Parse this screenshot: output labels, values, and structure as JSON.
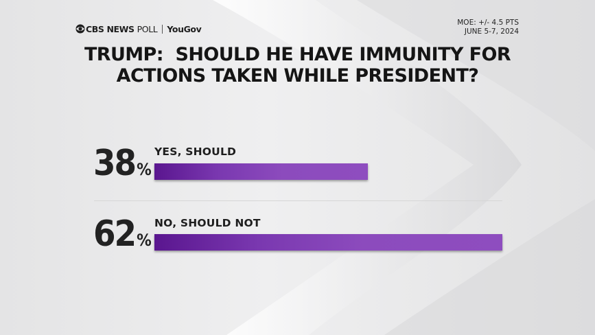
{
  "brand": {
    "network": "CBS NEWS",
    "poll": "POLL",
    "partner": "YouGov"
  },
  "meta": {
    "moe": "MOE: +/- 4.5 PTS",
    "dates": "JUNE 5-7, 2024"
  },
  "title_line1": "TRUMP:  SHOULD HE HAVE IMMUNITY FOR",
  "title_line2": "ACTIONS TAKEN WHILE PRESIDENT?",
  "percent_symbol": "%",
  "colors": {
    "bar": "#8e4dbf",
    "bar_dark": "#5a168f"
  },
  "chart_data": {
    "type": "bar",
    "orientation": "horizontal",
    "title": "TRUMP:  SHOULD HE HAVE IMMUNITY FOR ACTIONS TAKEN WHILE PRESIDENT?",
    "categories": [
      "YES, SHOULD",
      "NO, SHOULD NOT"
    ],
    "values": [
      38,
      62
    ],
    "value_labels": [
      "38",
      "62"
    ],
    "unit": "%",
    "xlim": [
      0,
      62
    ]
  }
}
